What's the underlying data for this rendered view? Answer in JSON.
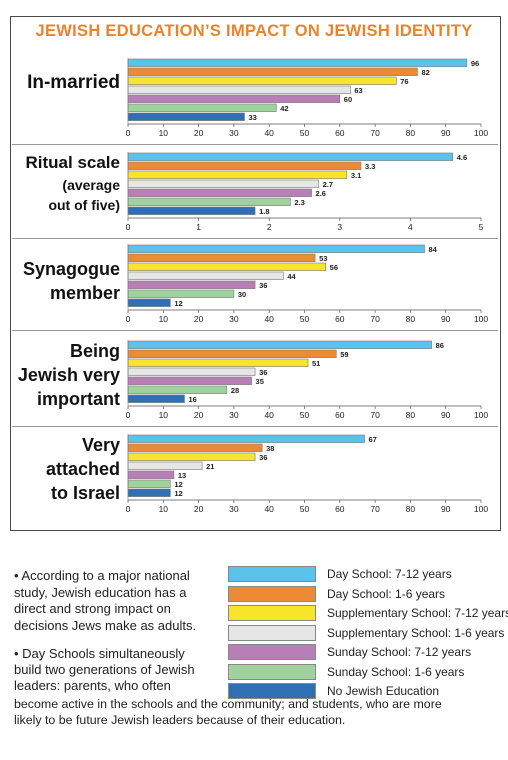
{
  "title": "JEWISH EDUCATION’S IMPACT ON JEWISH IDENTITY",
  "legend": [
    {
      "label": "Day School: 7-12 years",
      "color": "#5bc3ea"
    },
    {
      "label": "Day School: 1-6 years",
      "color": "#ec8b36"
    },
    {
      "label": "Supplementary School: 7-12 years",
      "color": "#f7e52a"
    },
    {
      "label": "Supplementary School: 1-6 years",
      "color": "#e6e6e6"
    },
    {
      "label": "Sunday School: 7-12 years",
      "color": "#b77fb5"
    },
    {
      "label": "Sunday School: 1-6 years",
      "color": "#9fd29c"
    },
    {
      "label": "No Jewish Education",
      "color": "#2f6fb3"
    }
  ],
  "notes": {
    "bullet1": "• According to a major national study, Jewish education has a direct and strong impact on decisions Jews make as adults.",
    "bullet2_lines": [
      "• Day Schools simultaneously",
      "build two generations of Jewish",
      "leaders: parents, who often",
      "become active in the schools and the community; and students, who are more",
      "likely to be future Jewish leaders because of their education."
    ]
  },
  "chart_data": [
    {
      "type": "bar",
      "label_lines": [
        "In-married"
      ],
      "series": [
        "Day School: 7-12 years",
        "Day School: 1-6 years",
        "Supplementary School: 7-12 years",
        "Supplementary School: 1-6 years",
        "Sunday School: 7-12 years",
        "Sunday School: 1-6 years",
        "No Jewish Education"
      ],
      "values": [
        96,
        82,
        76,
        63,
        60,
        42,
        33
      ],
      "value_labels": [
        "96",
        "82",
        "76",
        "63",
        "60",
        "42",
        "33"
      ],
      "xlim": [
        0,
        100
      ],
      "ticks": [
        "0",
        "10",
        "20",
        "30",
        "40",
        "50",
        "60",
        "70",
        "80",
        "90",
        "100"
      ]
    },
    {
      "type": "bar",
      "label_lines": [
        "Ritual scale",
        "(average",
        "out of five)"
      ],
      "series": [
        "Day School: 7-12 years",
        "Day School: 1-6 years",
        "Supplementary School: 7-12 years",
        "Supplementary School: 1-6 years",
        "Sunday School: 7-12 years",
        "Sunday School: 1-6 years",
        "No Jewish Education"
      ],
      "values": [
        4.6,
        3.3,
        3.1,
        2.7,
        2.6,
        2.3,
        1.8
      ],
      "value_labels": [
        "4.6",
        "3.3",
        "3.1",
        "2.7",
        "2.6",
        "2.3",
        "1.8"
      ],
      "xlim": [
        0,
        5
      ],
      "ticks": [
        "0",
        "1",
        "2",
        "3",
        "4",
        "5"
      ]
    },
    {
      "type": "bar",
      "label_lines": [
        "Synagogue",
        "member"
      ],
      "series": [
        "Day School: 7-12 years",
        "Day School: 1-6 years",
        "Supplementary School: 7-12 years",
        "Supplementary School: 1-6 years",
        "Sunday School: 7-12 years",
        "Sunday School: 1-6 years",
        "No Jewish Education"
      ],
      "values": [
        84,
        53,
        56,
        44,
        36,
        30,
        12
      ],
      "value_labels": [
        "84",
        "53",
        "56",
        "44",
        "36",
        "30",
        "12"
      ],
      "xlim": [
        0,
        100
      ],
      "ticks": [
        "0",
        "10",
        "20",
        "30",
        "40",
        "50",
        "60",
        "70",
        "80",
        "90",
        "100"
      ]
    },
    {
      "type": "bar",
      "label_lines": [
        "Being",
        "Jewish very",
        "important"
      ],
      "series": [
        "Day School: 7-12 years",
        "Day School: 1-6 years",
        "Supplementary School: 7-12 years",
        "Supplementary School: 1-6 years",
        "Sunday School: 7-12 years",
        "Sunday School: 1-6 years",
        "No Jewish Education"
      ],
      "values": [
        86,
        59,
        51,
        36,
        35,
        28,
        16
      ],
      "value_labels": [
        "86",
        "59",
        "51",
        "36",
        "35",
        "28",
        "16"
      ],
      "xlim": [
        0,
        100
      ],
      "ticks": [
        "0",
        "10",
        "20",
        "30",
        "40",
        "50",
        "60",
        "70",
        "80",
        "90",
        "100"
      ]
    },
    {
      "type": "bar",
      "label_lines": [
        "Very",
        "attached",
        "to Israel"
      ],
      "series": [
        "Day School: 7-12 years",
        "Day School: 1-6 years",
        "Supplementary School: 7-12 years",
        "Supplementary School: 1-6 years",
        "Sunday School: 7-12 years",
        "Sunday School: 1-6 years",
        "No Jewish Education"
      ],
      "values": [
        67,
        38,
        36,
        21,
        13,
        12,
        12
      ],
      "value_labels": [
        "67",
        "38",
        "36",
        "21",
        "13",
        "12",
        "12"
      ],
      "xlim": [
        0,
        100
      ],
      "ticks": [
        "0",
        "10",
        "20",
        "30",
        "40",
        "50",
        "60",
        "70",
        "80",
        "90",
        "100"
      ]
    }
  ]
}
